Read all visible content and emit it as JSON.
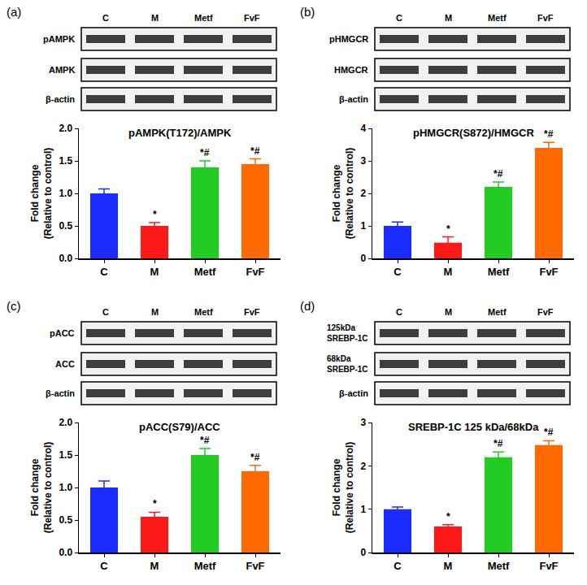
{
  "chart_data": [
    {
      "type": "bar",
      "panel": "(a)",
      "title": "pAMPK(T172)/AMPK",
      "y_label": [
        "Fold change",
        "(Relative to control)"
      ],
      "categories": [
        "C",
        "M",
        "Metf",
        "FvF"
      ],
      "values": [
        1.0,
        0.5,
        1.4,
        1.45
      ],
      "errors": [
        0.07,
        0.05,
        0.1,
        0.08
      ],
      "sig": [
        null,
        "*",
        "*#",
        "*#"
      ],
      "colors": [
        "#1a2cff",
        "#ff1a1a",
        "#22cc22",
        "#ff6a00"
      ],
      "ylim": [
        0,
        2
      ],
      "yticks": [
        {
          "value": 0,
          "label": "0.0"
        },
        {
          "value": 0.5,
          "label": "0.5"
        },
        {
          "value": 1,
          "label": "1.0"
        },
        {
          "value": 1.5,
          "label": "1.5"
        },
        {
          "value": 2,
          "label": "2.0"
        }
      ],
      "grid": false,
      "blot": {
        "lanes": [
          "C",
          "M",
          "Metf",
          "FvF"
        ],
        "rows": [
          "pAMPK",
          "AMPK",
          "β-actin"
        ]
      }
    },
    {
      "type": "bar",
      "panel": "(b)",
      "title": "pHMGCR(S872)/HMGCR",
      "y_label": [
        "Fold change",
        "(Relative to control)"
      ],
      "categories": [
        "C",
        "M",
        "Metf",
        "FvF"
      ],
      "values": [
        1.0,
        0.48,
        2.2,
        3.4
      ],
      "errors": [
        0.12,
        0.18,
        0.15,
        0.17
      ],
      "sig": [
        null,
        "*",
        "*#",
        "*#"
      ],
      "colors": [
        "#1a2cff",
        "#ff1a1a",
        "#22cc22",
        "#ff6a00"
      ],
      "ylim": [
        0,
        4
      ],
      "yticks": [
        0,
        1,
        2,
        3,
        4
      ],
      "grid": false,
      "blot": {
        "lanes": [
          "C",
          "M",
          "Metf",
          "FvF"
        ],
        "rows": [
          "pHMGCR",
          "HMGCR",
          "β-actin"
        ]
      }
    },
    {
      "type": "bar",
      "panel": "(c)",
      "title": "pACC(S79)/ACC",
      "y_label": [
        "Fold change",
        "(Relative to control)"
      ],
      "categories": [
        "C",
        "M",
        "Metf",
        "FvF"
      ],
      "values": [
        1.0,
        0.55,
        1.5,
        1.25
      ],
      "errors": [
        0.1,
        0.07,
        0.1,
        0.09
      ],
      "sig": [
        null,
        "*",
        "*#",
        "*#"
      ],
      "colors": [
        "#1a2cff",
        "#ff1a1a",
        "#22cc22",
        "#ff6a00"
      ],
      "ylim": [
        0,
        2
      ],
      "yticks": [
        {
          "value": 0,
          "label": "0.0"
        },
        {
          "value": 0.5,
          "label": "0.5"
        },
        {
          "value": 1,
          "label": "1.0"
        },
        {
          "value": 1.5,
          "label": "1.5"
        },
        {
          "value": 2,
          "label": "2.0"
        }
      ],
      "grid": false,
      "blot": {
        "lanes": [
          "C",
          "M",
          "Metf",
          "FvF"
        ],
        "rows": [
          "pACC",
          "ACC",
          "β-actin"
        ]
      }
    },
    {
      "type": "bar",
      "panel": "(d)",
      "title": "SREBP-1C 125 kDa/68kDa",
      "y_label": [
        "Fold change",
        "(Relative to control)"
      ],
      "categories": [
        "C",
        "M",
        "Metf",
        "FvF"
      ],
      "values": [
        1.0,
        0.6,
        2.2,
        2.48
      ],
      "errors": [
        0.05,
        0.04,
        0.12,
        0.1
      ],
      "sig": [
        null,
        "*",
        "*#",
        "*#"
      ],
      "colors": [
        "#1a2cff",
        "#ff1a1a",
        "#22cc22",
        "#ff6a00"
      ],
      "ylim": [
        0,
        3
      ],
      "yticks": [
        0,
        1,
        2,
        3
      ],
      "grid": false,
      "blot": {
        "lanes": [
          "C",
          "M",
          "Metf",
          "FvF"
        ],
        "rows": [
          [
            "125kDa",
            "SREBP-1C"
          ],
          [
            "68kDa",
            "SREBP-1C"
          ],
          "β-actin"
        ]
      }
    }
  ]
}
